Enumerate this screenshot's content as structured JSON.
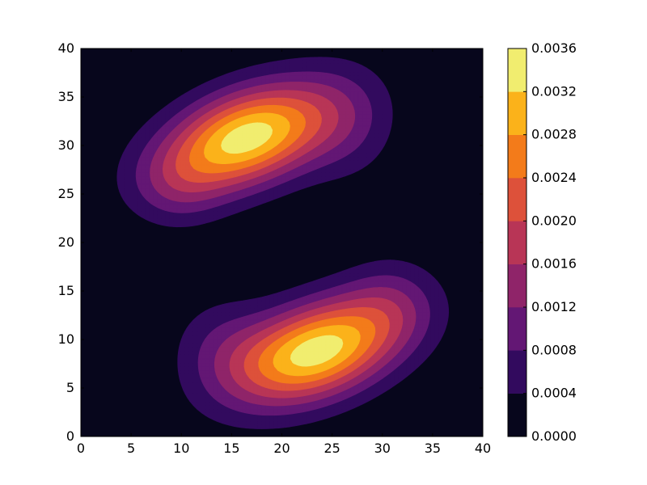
{
  "chart_data": {
    "type": "contourf",
    "title": "",
    "xlabel": "",
    "ylabel": "",
    "xlim": [
      0,
      40
    ],
    "ylim": [
      0,
      40
    ],
    "x_ticks": [
      0,
      5,
      10,
      15,
      20,
      25,
      30,
      35,
      40
    ],
    "y_ticks": [
      0,
      5,
      10,
      15,
      20,
      25,
      30,
      35,
      40
    ],
    "x_tick_labels": [
      "0",
      "5",
      "10",
      "15",
      "20",
      "25",
      "30",
      "35",
      "40"
    ],
    "y_tick_labels": [
      "0",
      "5",
      "10",
      "15",
      "20",
      "25",
      "30",
      "35",
      "40"
    ],
    "colormap": "inferno",
    "levels": [
      0.0,
      0.0004,
      0.0008,
      0.0012,
      0.0016,
      0.002,
      0.0024,
      0.0028,
      0.0032,
      0.0036
    ],
    "level_colors": [
      "#07061c",
      "#320a5e",
      "#631774",
      "#8f2469",
      "#b83556",
      "#dd513a",
      "#f37b1a",
      "#fbb21a",
      "#f1ed6f"
    ],
    "colorbar_tick_labels": [
      "0.0000",
      "0.0004",
      "0.0008",
      "0.0012",
      "0.0016",
      "0.0020",
      "0.0024",
      "0.0028",
      "0.0032",
      "0.0036"
    ],
    "grid": false,
    "peaks": [
      {
        "x": 17,
        "y": 31,
        "value": 0.0034
      },
      {
        "x": 24,
        "y": 9,
        "value": 0.0034
      }
    ]
  }
}
